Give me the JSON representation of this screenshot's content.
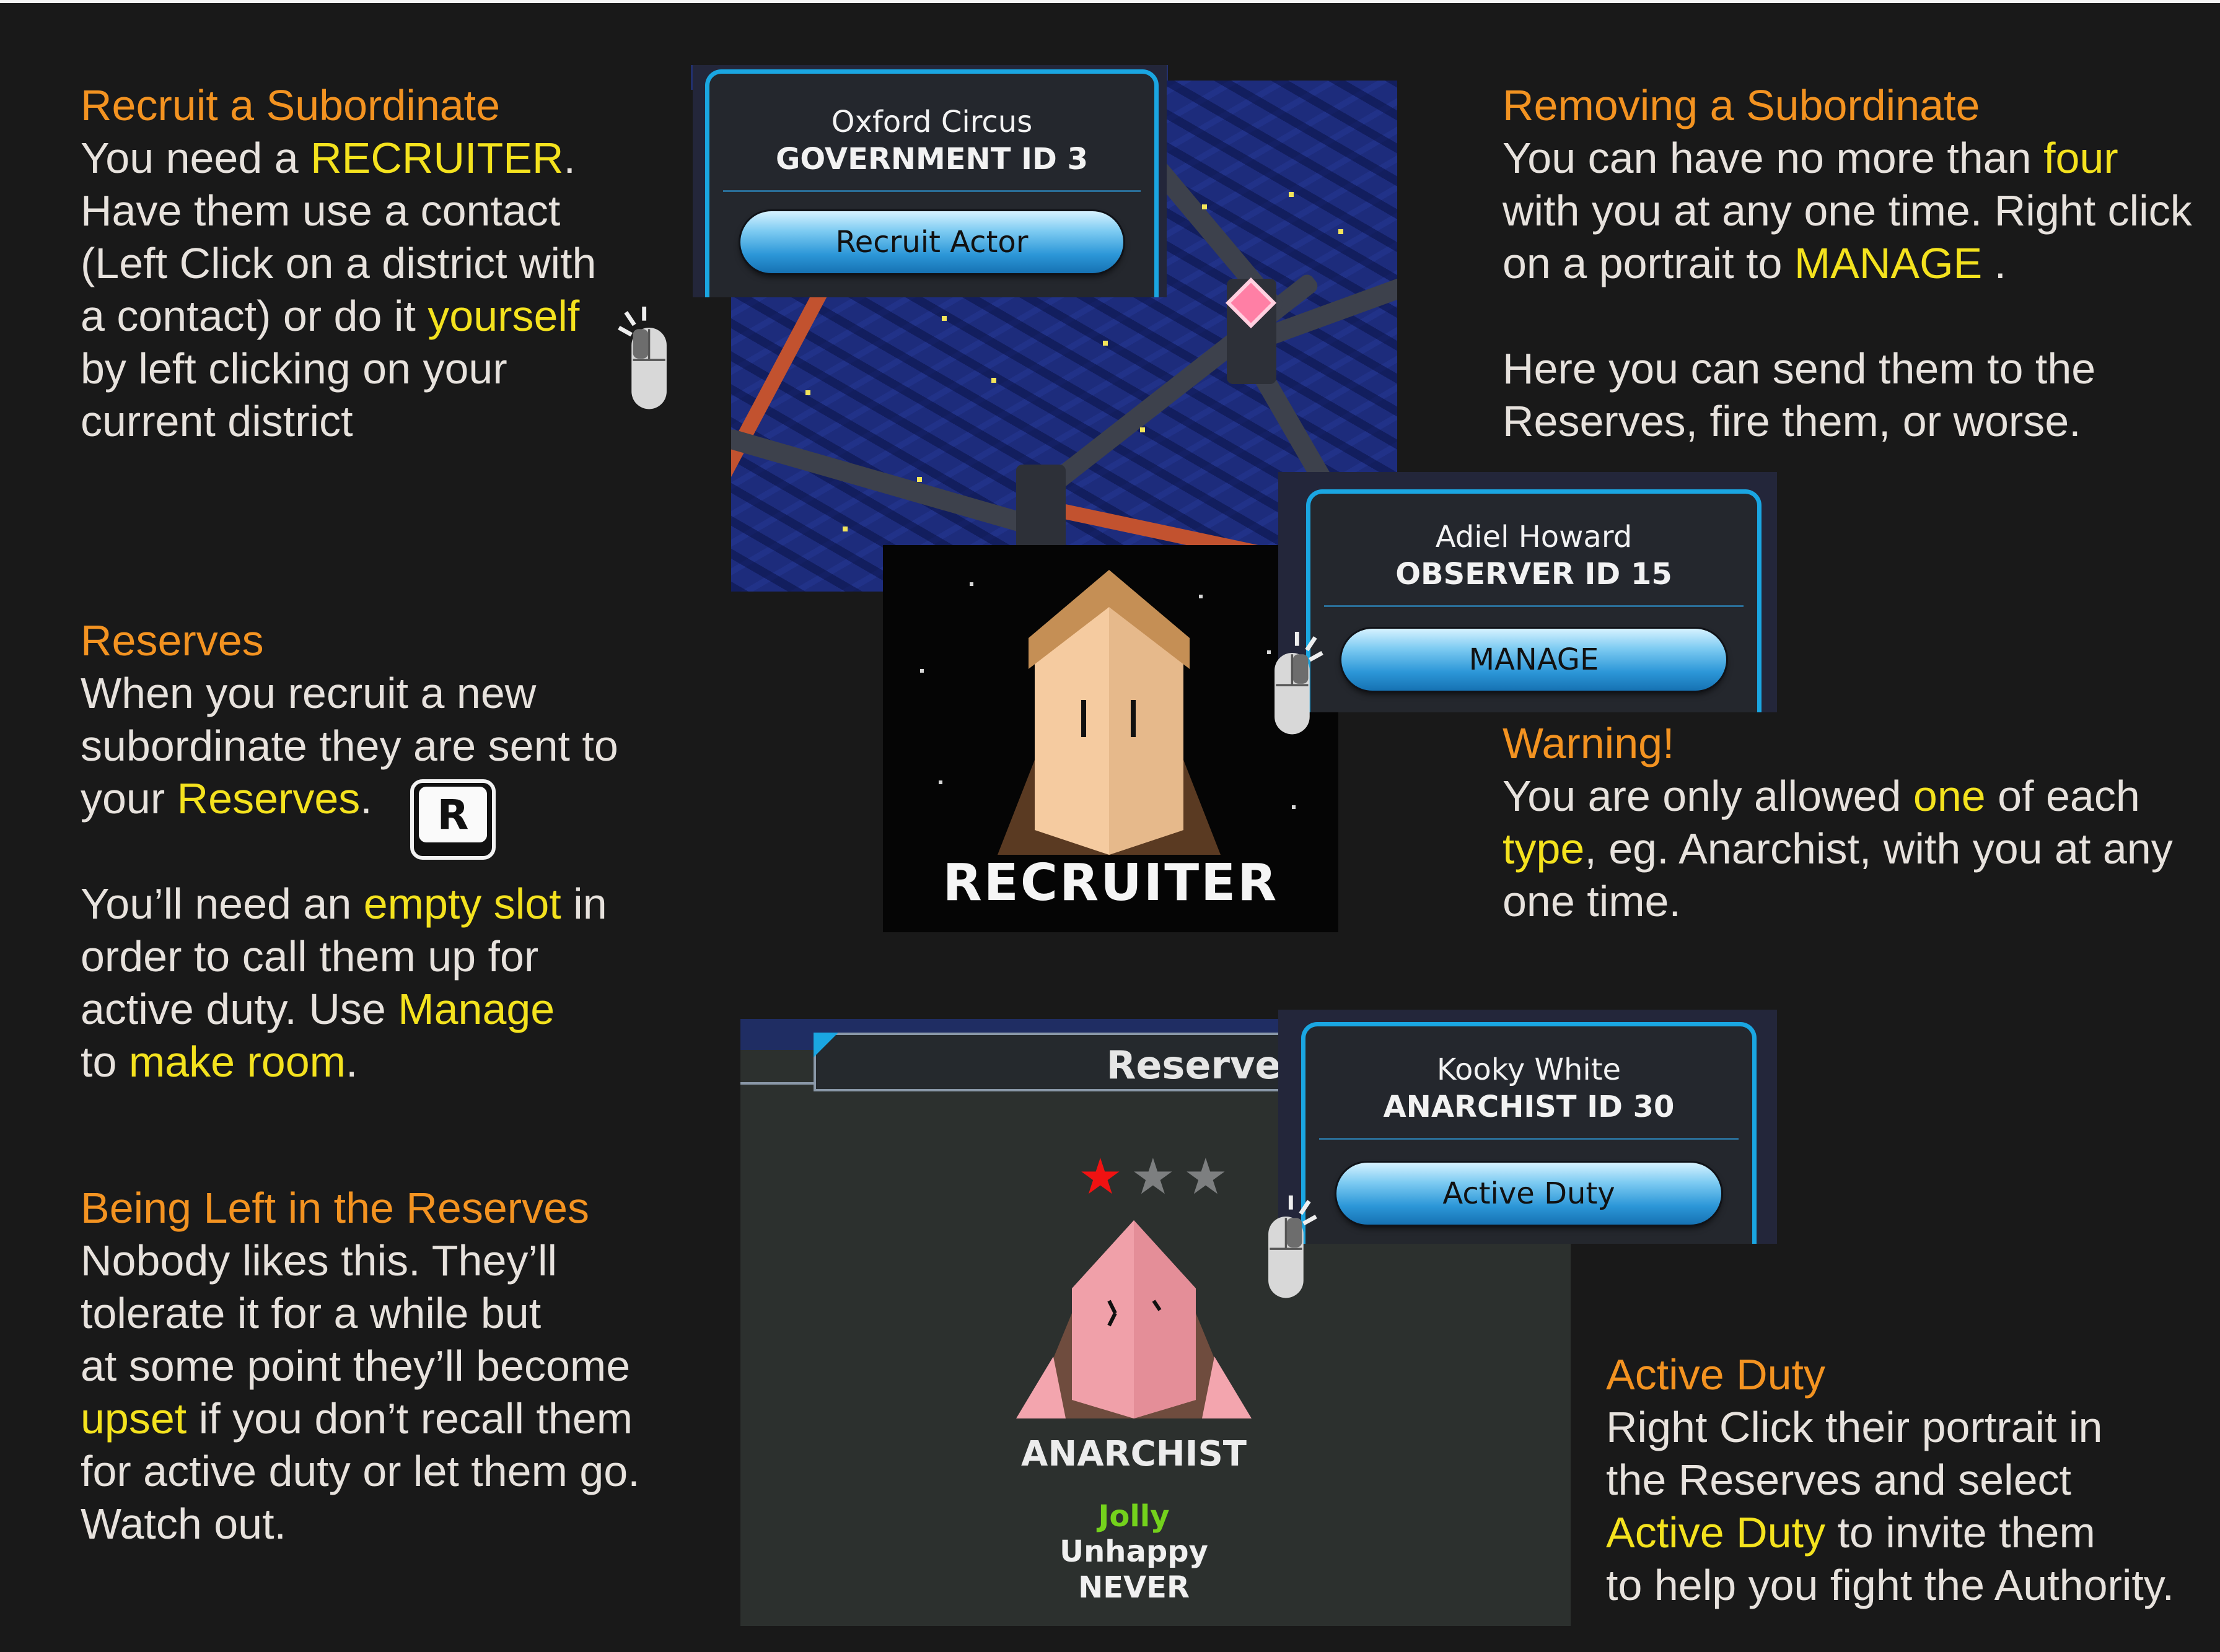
{
  "colors": {
    "heading": "#f39321",
    "highlight": "#f4e21e",
    "body_text": "#e7e2dd",
    "panel_border": "#1aa6e2",
    "background": "#191919"
  },
  "recruit": {
    "heading": "Recruit a Subordinate",
    "l1_a": "You need a ",
    "l1_b": "RECRUITER",
    "l1_c": ".",
    "l2": "Have them use a contact",
    "l3": "(Left Click on a district with",
    "l4_a": "a contact) or do it ",
    "l4_b": "yourself",
    "l5": "by left clicking on your",
    "l6": "current district"
  },
  "reserves_text": {
    "heading": "Reserves",
    "l1": "When you recruit a new",
    "l2": "subordinate they are sent to",
    "l3_a": "your ",
    "l3_b": "Reserves",
    "l3_c": ".",
    "l4_a": "You’ll need an ",
    "l4_b": "empty slot",
    "l4_c": " in",
    "l5": "order to call them up for",
    "l6_a": "active duty. Use ",
    "l6_b": "Manage",
    "l7_a": "to ",
    "l7_b": "make room",
    "l7_c": "."
  },
  "left_in_reserves": {
    "heading": "Being Left in the Reserves",
    "l1": "Nobody likes this. They’ll",
    "l2": "tolerate it for a while but",
    "l3": "at some point they’ll become",
    "l4_a": "upset",
    "l4_b": " if you don’t recall them",
    "l5": "for active duty or let them go.",
    "l6": "Watch out."
  },
  "removing": {
    "heading": "Removing a Subordinate",
    "l1_a": "You can have no more than ",
    "l1_b": "four",
    "l2": "with you at any one time. Right click",
    "l3_a": "on a portrait to ",
    "l3_b": "MANAGE",
    "l3_c": " .",
    "l4": "Here you can send them to the",
    "l5": "Reserves, fire them, or worse."
  },
  "warning": {
    "heading": "Warning!",
    "l1_a": "You are only allowed ",
    "l1_b": "one",
    "l1_c": " of each",
    "l2_a": "type",
    "l2_b": ", eg. Anarchist, with you at any",
    "l3": "one time."
  },
  "active_duty_text": {
    "heading": "Active Duty",
    "l1": "Right Click their portrait in",
    "l2": "the Reserves and select",
    "l3_a": "Active Duty",
    "l3_b": " to invite them",
    "l4": "to help you fight the Authority."
  },
  "panel_district": {
    "name": "Oxford Circus",
    "role": "GOVERNMENT ID 3",
    "button": "Recruit Actor"
  },
  "panel_observer": {
    "name": "Adiel Howard",
    "role": "OBSERVER ID 15",
    "button": "MANAGE"
  },
  "panel_anarchist": {
    "name": "Kooky White",
    "role": "ANARCHIST ID 30",
    "button": "Active Duty"
  },
  "recruiter_card": {
    "label": "RECRUITER"
  },
  "reserves_screen": {
    "title": "Reserves",
    "stars_filled": 1,
    "stars_total": 3,
    "role": "ANARCHIST",
    "trait": "Jolly",
    "trait_color": "#74d21c",
    "mood": "Unhappy",
    "status": "NEVER"
  },
  "keycap": {
    "key": "R"
  },
  "icons": [
    "mouse-left-click-icon",
    "mouse-right-click-icon",
    "keyboard-r-key-icon",
    "star-icon"
  ]
}
